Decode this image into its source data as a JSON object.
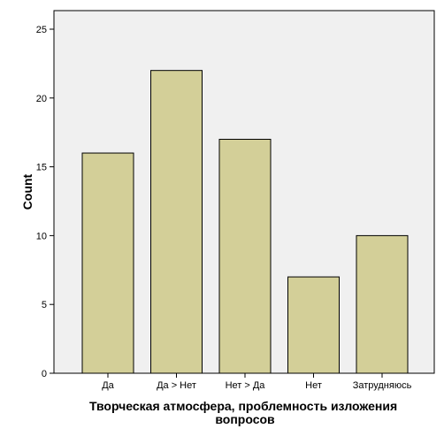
{
  "chart_data": {
    "type": "bar",
    "categories": [
      "Да",
      "Да > Нет",
      "Нет > Да",
      "Нет",
      "Затрудняюсь"
    ],
    "values": [
      16,
      22,
      17,
      7,
      10
    ],
    "xlabel_lines": [
      "Творческая атмосфера, проблемность изложения",
      "вопросов"
    ],
    "ylabel": "Count",
    "ylim": [
      0,
      25
    ],
    "yticks": [
      0,
      5,
      10,
      15,
      20,
      25
    ],
    "grid": false,
    "legend": "none",
    "colors": {
      "bar_fill": "#d3cf98",
      "bar_stroke": "#000000",
      "plot_background": "#f0f0f0",
      "page_background": "#ffffff"
    }
  }
}
